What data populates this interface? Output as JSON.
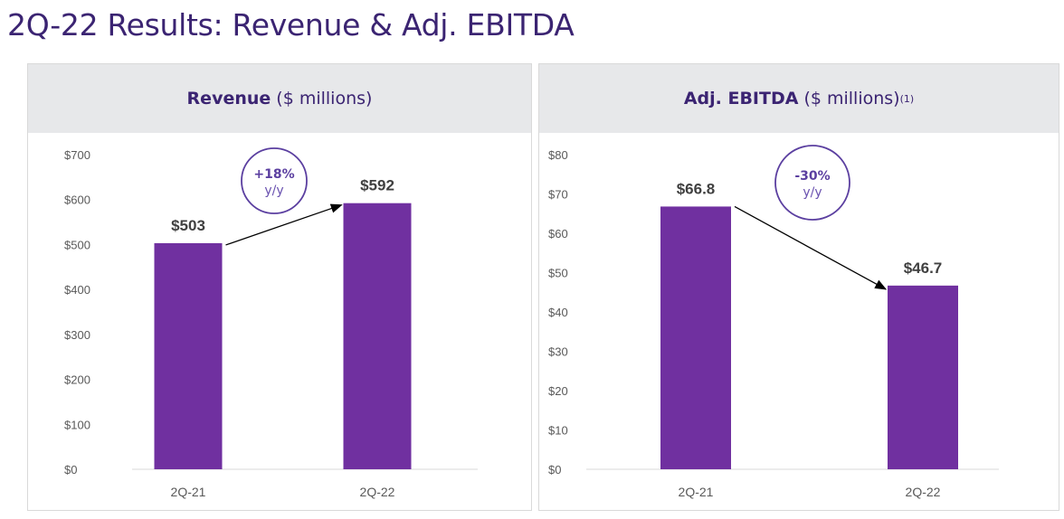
{
  "page_title": "2Q-22 Results: Revenue & Adj. EBITDA",
  "colors": {
    "bar": "#7030a0",
    "title": "#3b2472",
    "badge": "#5b3fa0",
    "header_bg": "#e7e8ea"
  },
  "chart_data": [
    {
      "type": "bar",
      "title_bold": "Revenue",
      "title_rest": "($ millions)",
      "title_sup": "",
      "categories": [
        "2Q-21",
        "2Q-22"
      ],
      "values": [
        503,
        592
      ],
      "data_labels": [
        "$503",
        "$592"
      ],
      "yticks": [
        0,
        100,
        200,
        300,
        400,
        500,
        600,
        700
      ],
      "ytick_labels": [
        "$0",
        "$100",
        "$200",
        "$300",
        "$400",
        "$500",
        "$600",
        "$700"
      ],
      "ylim": [
        0,
        700
      ],
      "xlabel": "",
      "ylabel": "",
      "grid": false,
      "annotation": {
        "change": "+18%",
        "period": "y/y"
      }
    },
    {
      "type": "bar",
      "title_bold": "Adj. EBITDA",
      "title_rest": "($ millions)",
      "title_sup": "(1)",
      "categories": [
        "2Q-21",
        "2Q-22"
      ],
      "values": [
        66.8,
        46.7
      ],
      "data_labels": [
        "$66.8",
        "$46.7"
      ],
      "yticks": [
        0,
        10,
        20,
        30,
        40,
        50,
        60,
        70,
        80
      ],
      "ytick_labels": [
        "$0",
        "$10",
        "$20",
        "$30",
        "$40",
        "$50",
        "$60",
        "$70",
        "$80"
      ],
      "ylim": [
        0,
        80
      ],
      "xlabel": "",
      "ylabel": "",
      "grid": false,
      "annotation": {
        "change": "-30%",
        "period": "y/y"
      }
    }
  ]
}
